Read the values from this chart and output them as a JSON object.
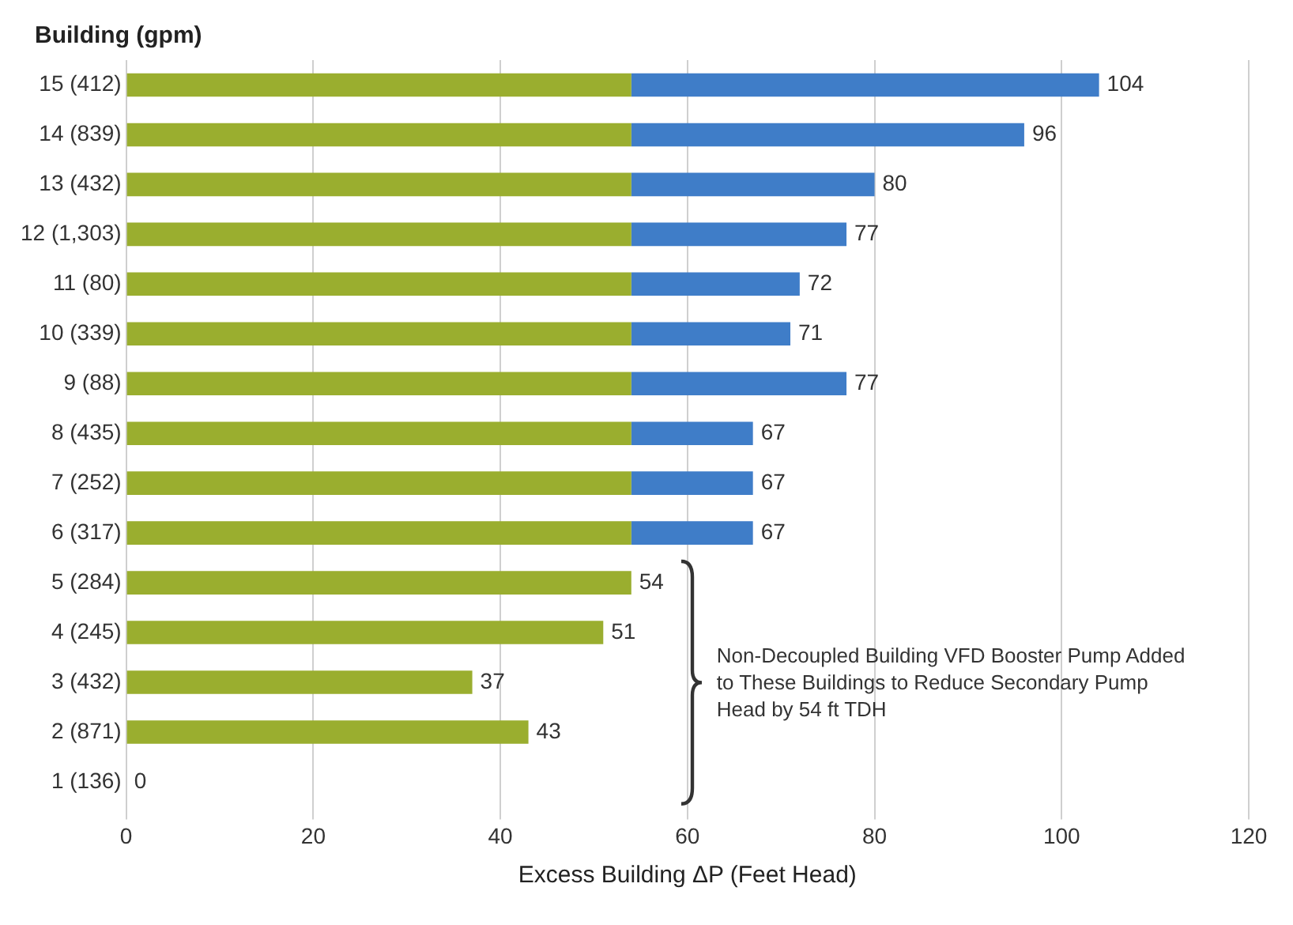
{
  "chart_data": {
    "type": "bar",
    "orientation": "horizontal",
    "stacked": true,
    "ylabel": "Building (gpm)",
    "xlabel": "Excess Building ΔP (Feet Head)",
    "categories": [
      "15 (412)",
      "14 (839)",
      "13 (432)",
      "12 (1,303)",
      "11 (80)",
      "10 (339)",
      "9 (88)",
      "8 (435)",
      "7 (252)",
      "6 (317)",
      "5 (284)",
      "4 (245)",
      "3 (432)",
      "2 (871)",
      "1 (136)"
    ],
    "series": [
      {
        "color": "#9aae2f",
        "values": [
          54,
          54,
          54,
          54,
          54,
          54,
          54,
          54,
          54,
          54,
          54,
          51,
          37,
          43,
          0
        ]
      },
      {
        "color": "#3f7dc8",
        "values": [
          50,
          42,
          26,
          23,
          18,
          17,
          23,
          13,
          13,
          13,
          null,
          null,
          null,
          null,
          null
        ]
      }
    ],
    "totals": [
      "104",
      "96",
      "80",
      "77",
      "72",
      "71",
      "77",
      "67",
      "67",
      "67",
      "54",
      "51",
      "37",
      "43",
      "0"
    ],
    "xlim": [
      0,
      120
    ],
    "xticks": [
      0,
      20,
      40,
      60,
      80,
      100,
      120
    ],
    "grid": "x",
    "legend": false,
    "annotations": [
      "Non-Decoupled Building VFD Booster Pump Added to These Buildings to Reduce Secondary Pump Head by 54 ft TDH"
    ]
  }
}
